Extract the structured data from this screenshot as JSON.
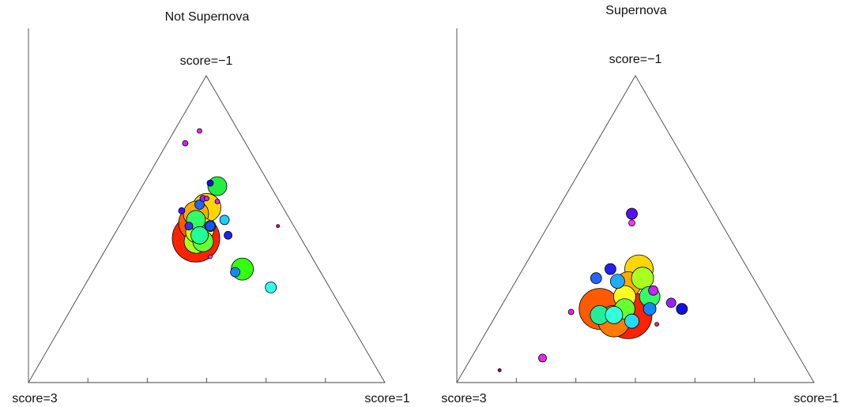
{
  "chart_data": [
    {
      "type": "scatter",
      "subtype": "ternary-bubble",
      "title": "Not Supernova",
      "vertex_labels": {
        "top": "score=−1",
        "left": "score=3",
        "right": "score=1"
      },
      "points": [
        {
          "x": 0.47,
          "y": 0.47,
          "size": 30,
          "color": "#ff2200"
        },
        {
          "x": 0.47,
          "y": 0.52,
          "size": 22,
          "color": "#ff5a00"
        },
        {
          "x": 0.5,
          "y": 0.57,
          "size": 18,
          "color": "#ffd700"
        },
        {
          "x": 0.47,
          "y": 0.55,
          "size": 16,
          "color": "#ffaa00"
        },
        {
          "x": 0.49,
          "y": 0.5,
          "size": 14,
          "color": "#ffff33"
        },
        {
          "x": 0.47,
          "y": 0.49,
          "size": 13,
          "color": "#ccff00"
        },
        {
          "x": 0.47,
          "y": 0.46,
          "size": 15,
          "color": "#aaff22"
        },
        {
          "x": 0.49,
          "y": 0.46,
          "size": 13,
          "color": "#66ff33"
        },
        {
          "x": 0.47,
          "y": 0.53,
          "size": 12,
          "color": "#33ff66"
        },
        {
          "x": 0.48,
          "y": 0.48,
          "size": 11,
          "color": "#22ff99"
        },
        {
          "x": 0.6,
          "y": 0.37,
          "size": 14,
          "color": "#33ff11"
        },
        {
          "x": 0.53,
          "y": 0.64,
          "size": 12,
          "color": "#22ee44"
        },
        {
          "x": 0.68,
          "y": 0.31,
          "size": 7,
          "color": "#33ffee"
        },
        {
          "x": 0.51,
          "y": 0.51,
          "size": 7,
          "color": "#22ddff"
        },
        {
          "x": 0.55,
          "y": 0.53,
          "size": 6,
          "color": "#22ccff"
        },
        {
          "x": 0.58,
          "y": 0.36,
          "size": 6,
          "color": "#1188ff"
        },
        {
          "x": 0.48,
          "y": 0.58,
          "size": 6,
          "color": "#2266ff"
        },
        {
          "x": 0.51,
          "y": 0.51,
          "size": 6,
          "color": "#1155ff"
        },
        {
          "x": 0.45,
          "y": 0.51,
          "size": 5,
          "color": "#3333ff"
        },
        {
          "x": 0.56,
          "y": 0.48,
          "size": 5,
          "color": "#2222ee"
        },
        {
          "x": 0.43,
          "y": 0.56,
          "size": 4,
          "color": "#4411ff"
        },
        {
          "x": 0.51,
          "y": 0.65,
          "size": 4,
          "color": "#1111dd"
        },
        {
          "x": 0.49,
          "y": 0.6,
          "size": 4,
          "color": "#9922ff"
        },
        {
          "x": 0.44,
          "y": 0.78,
          "size": 3.5,
          "color": "#cc22ff"
        },
        {
          "x": 0.5,
          "y": 0.6,
          "size": 3,
          "color": "#dd22dd"
        },
        {
          "x": 0.53,
          "y": 0.59,
          "size": 3,
          "color": "#dd22ee"
        },
        {
          "x": 0.48,
          "y": 0.82,
          "size": 3,
          "color": "#ee22ee"
        },
        {
          "x": 0.51,
          "y": 0.41,
          "size": 2.5,
          "color": "#ff33ff"
        },
        {
          "x": 0.7,
          "y": 0.51,
          "size": 2,
          "color": "#cc0088"
        }
      ]
    },
    {
      "type": "scatter",
      "subtype": "ternary-bubble",
      "title": "Supernova",
      "vertex_labels": {
        "top": "score=−1",
        "left": "score=3",
        "right": "score=1"
      },
      "points": [
        {
          "x": 0.48,
          "y": 0.22,
          "size": 30,
          "color": "#ff2200"
        },
        {
          "x": 0.4,
          "y": 0.24,
          "size": 26,
          "color": "#ff5a00"
        },
        {
          "x": 0.44,
          "y": 0.2,
          "size": 20,
          "color": "#ff7a00"
        },
        {
          "x": 0.51,
          "y": 0.37,
          "size": 18,
          "color": "#ffd700"
        },
        {
          "x": 0.48,
          "y": 0.32,
          "size": 16,
          "color": "#ffaa00"
        },
        {
          "x": 0.47,
          "y": 0.28,
          "size": 14,
          "color": "#ffff22"
        },
        {
          "x": 0.52,
          "y": 0.34,
          "size": 14,
          "color": "#aaff22"
        },
        {
          "x": 0.47,
          "y": 0.24,
          "size": 13,
          "color": "#66ff33"
        },
        {
          "x": 0.54,
          "y": 0.28,
          "size": 13,
          "color": "#33ff66"
        },
        {
          "x": 0.4,
          "y": 0.22,
          "size": 12,
          "color": "#22ee99"
        },
        {
          "x": 0.44,
          "y": 0.22,
          "size": 11,
          "color": "#33ffdd"
        },
        {
          "x": 0.49,
          "y": 0.2,
          "size": 9,
          "color": "#22ddff"
        },
        {
          "x": 0.45,
          "y": 0.33,
          "size": 9,
          "color": "#22aaff"
        },
        {
          "x": 0.54,
          "y": 0.24,
          "size": 8,
          "color": "#1188ff"
        },
        {
          "x": 0.39,
          "y": 0.34,
          "size": 7,
          "color": "#2266ff"
        },
        {
          "x": 0.43,
          "y": 0.37,
          "size": 7,
          "color": "#2222ee"
        },
        {
          "x": 0.63,
          "y": 0.24,
          "size": 7,
          "color": "#1111dd"
        },
        {
          "x": 0.49,
          "y": 0.55,
          "size": 7,
          "color": "#5511ee"
        },
        {
          "x": 0.6,
          "y": 0.26,
          "size": 6,
          "color": "#9922ff"
        },
        {
          "x": 0.55,
          "y": 0.3,
          "size": 6,
          "color": "#cc22ff"
        },
        {
          "x": 0.24,
          "y": 0.08,
          "size": 5,
          "color": "#ee22ee"
        },
        {
          "x": 0.49,
          "y": 0.52,
          "size": 4,
          "color": "#ff33ff"
        },
        {
          "x": 0.32,
          "y": 0.23,
          "size": 3.5,
          "color": "#ee22cc"
        },
        {
          "x": 0.56,
          "y": 0.19,
          "size": 2.5,
          "color": "#ee2288"
        },
        {
          "x": 0.12,
          "y": 0.04,
          "size": 2,
          "color": "#aa0044"
        }
      ]
    }
  ]
}
